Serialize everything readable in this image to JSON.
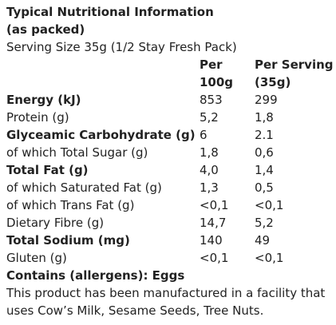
{
  "title_line1": "Typical Nutritional Information",
  "title_line2": "(as packed)",
  "serving_size": "Serving Size 35g (1/2 Stay Fresh Pack)",
  "headers": {
    "per_100g_line1": "Per",
    "per_100g_line2": "100g",
    "per_serving_line1": "Per Serving",
    "per_serving_line2": "(35g)"
  },
  "rows": [
    {
      "label": "Energy (kJ)",
      "per_100g": "853",
      "per_serving": "299",
      "bold": true
    },
    {
      "label": "Protein (g)",
      "per_100g": "5,2",
      "per_serving": "1,8",
      "bold": false
    },
    {
      "label": "Glyceamic Carbohydrate (g)",
      "per_100g": "6",
      "per_serving": "2.1",
      "bold": true
    },
    {
      "label": "of which Total Sugar (g)",
      "per_100g": "1,8",
      "per_serving": "0,6",
      "bold": false
    },
    {
      "label": "Total Fat (g)",
      "per_100g": "4,0",
      "per_serving": "1,4",
      "bold": true
    },
    {
      "label": "of which Saturated Fat (g)",
      "per_100g": "1,3",
      "per_serving": "0,5",
      "bold": false
    },
    {
      "label": "of which Trans Fat (g)",
      "per_100g": "<0,1",
      "per_serving": "<0,1",
      "bold": false
    },
    {
      "label": "Dietary Fibre (g)",
      "per_100g": "14,7",
      "per_serving": "5,2",
      "bold": false
    },
    {
      "label": "Total Sodium (mg)",
      "per_100g": "140",
      "per_serving": "49",
      "bold": true
    },
    {
      "label": "Gluten (g)",
      "per_100g": "<0,1",
      "per_serving": "<0,1",
      "bold": false
    }
  ],
  "allergens": "Contains (allergens): Eggs",
  "facility_note": "This product has been manufactured in a facility that uses Cow’s Milk, Sesame Seeds, Tree Nuts."
}
